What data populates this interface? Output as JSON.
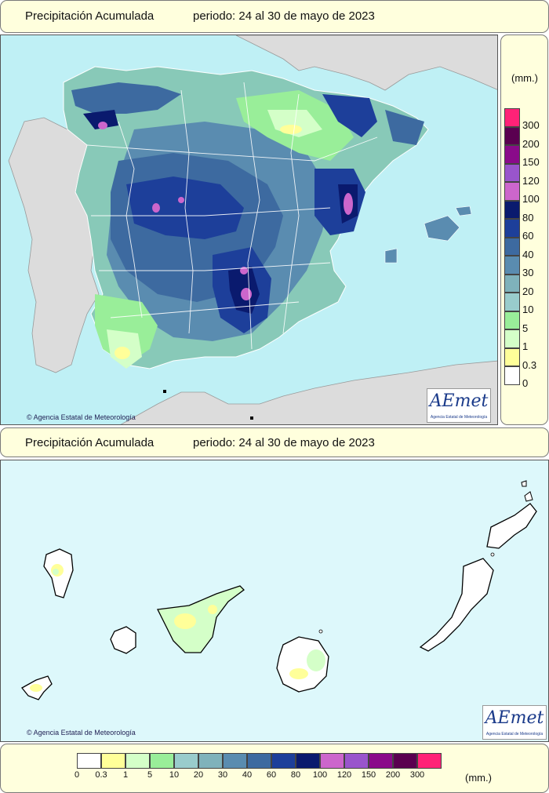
{
  "top": {
    "title": "Precipitación Acumulada",
    "period": "periodo: 24 al 30 de mayo de 2023",
    "credit": "Agencia Estatal de Meteorología",
    "logo": "AEmet",
    "logo_sub": "Agencia Estatal de Meteorología"
  },
  "bottom": {
    "title": "Precipitación Acumulada",
    "period": "periodo: 24 al 30 de mayo de 2023",
    "credit": "Agencia Estatal de Meteorología",
    "logo": "AEmet",
    "logo_sub": "Agencia Estatal de Meteorología"
  },
  "legend": {
    "unit": "(mm.)",
    "labels": [
      "0",
      "0.3",
      "1",
      "5",
      "10",
      "20",
      "30",
      "40",
      "60",
      "80",
      "100",
      "120",
      "150",
      "200",
      "300"
    ],
    "colors": [
      "#ffffff",
      "#ffff99",
      "#d4ffc8",
      "#99ee99",
      "#99cccc",
      "#7fb2bb",
      "#5a8cb0",
      "#3d6aa0",
      "#1d3f9a",
      "#0a1a6e",
      "#cc66cc",
      "#9955cc",
      "#8a0a8a",
      "#5a0050",
      "#ff2277"
    ]
  },
  "colors": {
    "sea": "#bff0f5",
    "land_other": "#dcdcdc",
    "panel": "#ffffdd"
  }
}
